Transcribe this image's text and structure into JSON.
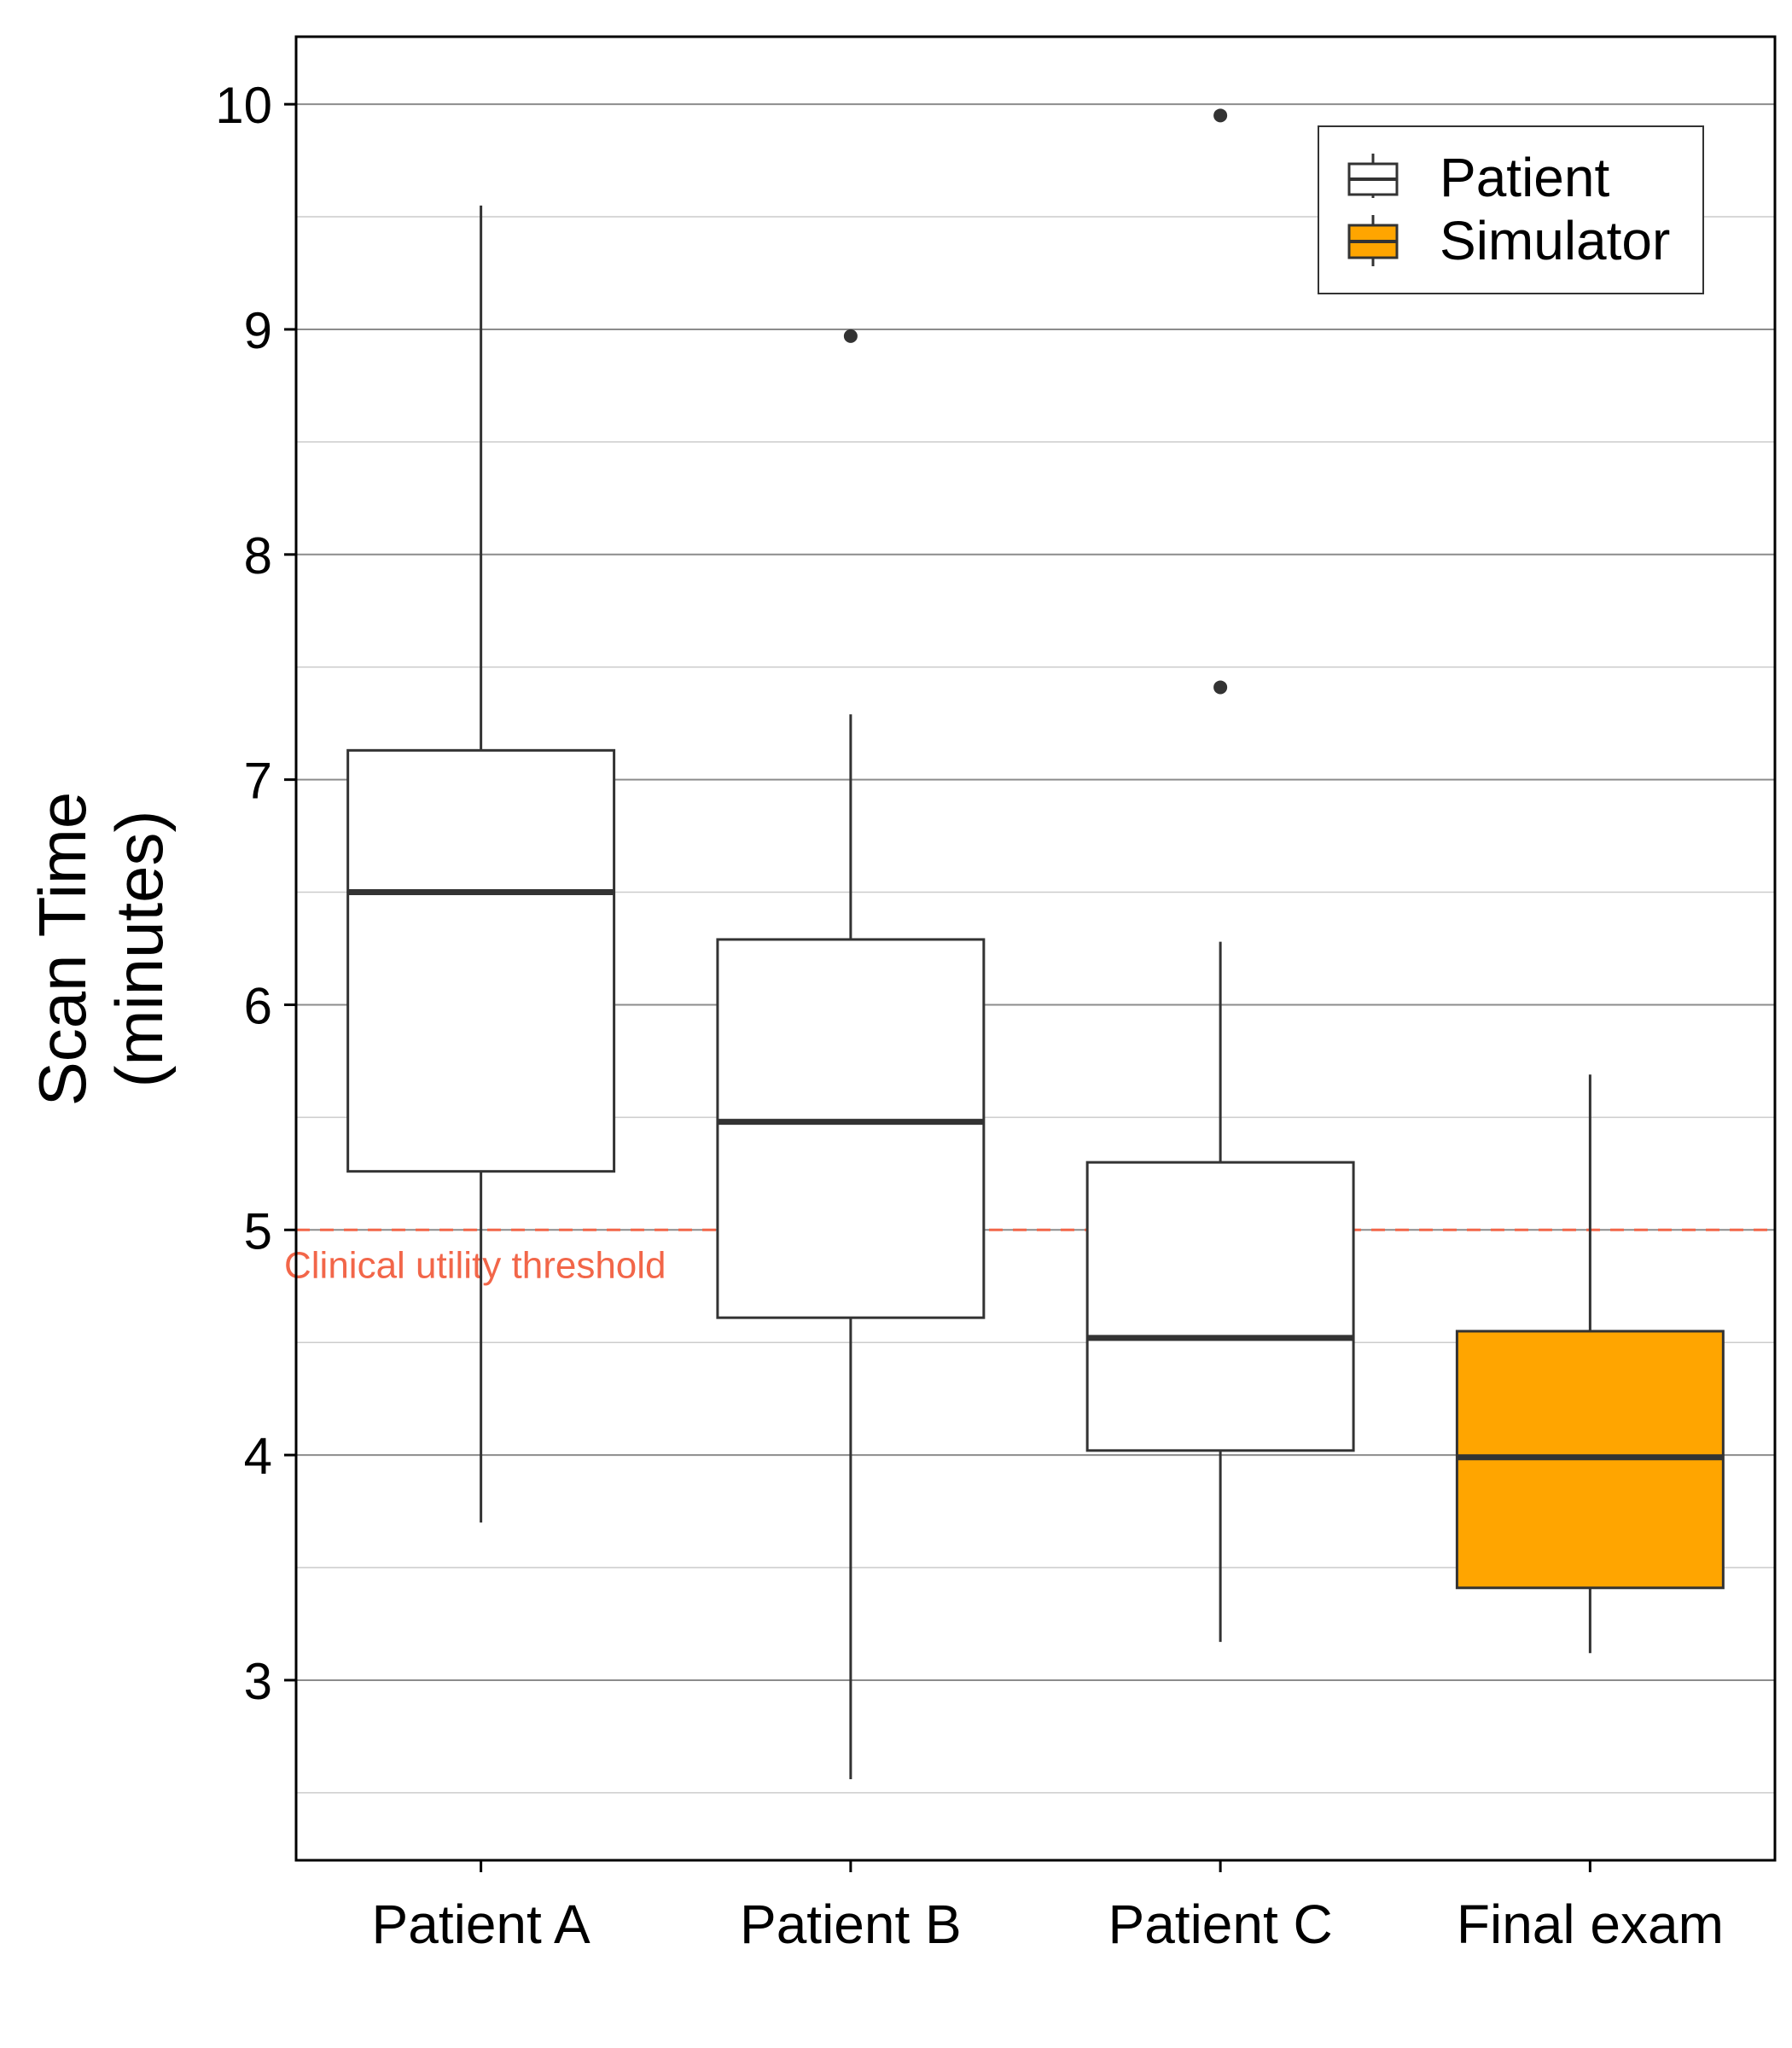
{
  "chart_data": {
    "type": "boxplot",
    "ylabel_line1": "Scan Time",
    "ylabel_line2": "(minutes)",
    "ylim": [
      2.2,
      10.3
    ],
    "yticks": [
      3,
      4,
      5,
      6,
      7,
      8,
      9,
      10
    ],
    "ytick_labels": [
      "3",
      "4",
      "5",
      "6",
      "7",
      "8",
      "9",
      "10"
    ],
    "grid": true,
    "categories": [
      "Patient A",
      "Patient B",
      "Patient C",
      "Final exam"
    ],
    "boxes": [
      {
        "category": "Patient A",
        "group": "Patient",
        "whisker_low": 3.7,
        "q1": 5.26,
        "median": 6.5,
        "q3": 7.13,
        "whisker_high": 9.55,
        "outliers": []
      },
      {
        "category": "Patient B",
        "group": "Patient",
        "whisker_low": 2.56,
        "q1": 4.61,
        "median": 5.48,
        "q3": 6.29,
        "whisker_high": 7.29,
        "outliers": [
          8.97
        ]
      },
      {
        "category": "Patient C",
        "group": "Patient",
        "whisker_low": 3.17,
        "q1": 4.02,
        "median": 4.52,
        "q3": 5.3,
        "whisker_high": 6.28,
        "outliers": [
          7.41,
          9.95
        ]
      },
      {
        "category": "Final exam",
        "group": "Simulator",
        "whisker_low": 3.12,
        "q1": 3.41,
        "median": 3.99,
        "q3": 4.55,
        "whisker_high": 5.69,
        "outliers": []
      }
    ],
    "reference_line": {
      "y": 5,
      "label": "Clinical utility threshold",
      "color": "#f26649",
      "style": "dashed"
    },
    "legend": {
      "position": "top-right",
      "items": [
        {
          "label": "Patient",
          "fill": "#ffffff"
        },
        {
          "label": "Simulator",
          "fill": "#ffa500"
        }
      ]
    },
    "colors": {
      "box_stroke": "#333333",
      "patient_fill": "#ffffff",
      "simulator_fill": "#ffa500",
      "threshold": "#f26649"
    }
  }
}
